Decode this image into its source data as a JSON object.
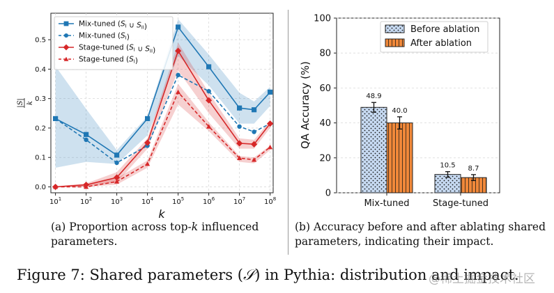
{
  "chart_data": [
    {
      "type": "line",
      "x_scale": "log",
      "x": [
        10,
        100,
        1000,
        10000,
        100000,
        1000000,
        10000000,
        30000000,
        100000000
      ],
      "xticks": [
        "10^1",
        "10^2",
        "10^3",
        "10^4",
        "10^5",
        "10^6",
        "10^7",
        "10^8"
      ],
      "xlabel": "k",
      "ylabel": "|S| / k",
      "ylim": [
        -0.02,
        0.59
      ],
      "yticks": [
        "0.0",
        "0.1",
        "0.2",
        "0.3",
        "0.4",
        "0.5"
      ],
      "grid": true,
      "legend_position": "top-left",
      "series": [
        {
          "name": "Mix-tuned (S_I ∪ S_II)",
          "color": "#1f77b4",
          "line": "solid",
          "marker": "square",
          "values": [
            0.232,
            0.178,
            0.108,
            0.232,
            0.543,
            0.408,
            0.268,
            0.262,
            0.322
          ],
          "band_low": [
            0.065,
            0.085,
            0.078,
            0.175,
            0.445,
            0.345,
            0.215,
            0.215,
            0.275
          ],
          "band_high": [
            0.41,
            0.265,
            0.125,
            0.24,
            0.57,
            0.45,
            0.32,
            0.29,
            0.34
          ]
        },
        {
          "name": "Mix-tuned (S_I)",
          "color": "#1f77b4",
          "line": "dashed",
          "marker": "circle",
          "values": [
            0.232,
            0.16,
            0.082,
            0.14,
            0.38,
            0.325,
            0.205,
            0.187,
            0.215
          ]
        },
        {
          "name": "Stage-tuned (S_I ∪ S_II)",
          "color": "#d62728",
          "line": "solid",
          "marker": "diamond",
          "values": [
            0.0,
            0.007,
            0.032,
            0.15,
            0.462,
            0.294,
            0.148,
            0.145,
            0.215
          ],
          "band_low": [
            0.0,
            0.002,
            0.015,
            0.13,
            0.395,
            0.25,
            0.13,
            0.13,
            0.2
          ],
          "band_high": [
            0.002,
            0.012,
            0.05,
            0.165,
            0.49,
            0.32,
            0.165,
            0.16,
            0.225
          ]
        },
        {
          "name": "Stage-tuned (S_I)",
          "color": "#d62728",
          "line": "dashed",
          "marker": "triangle",
          "values": [
            0.0,
            0.0,
            0.018,
            0.078,
            0.322,
            0.205,
            0.098,
            0.092,
            0.135
          ],
          "band_low": [
            0.0,
            0.0,
            0.008,
            0.065,
            0.28,
            0.19,
            0.085,
            0.08,
            0.125
          ],
          "band_high": [
            0.002,
            0.006,
            0.03,
            0.09,
            0.35,
            0.22,
            0.105,
            0.1,
            0.14
          ]
        }
      ]
    },
    {
      "type": "bar",
      "categories": [
        "Mix-tuned",
        "Stage-tuned"
      ],
      "ylabel": "QA Accuracy (%)",
      "ylim": [
        0,
        100
      ],
      "yticks": [
        "0",
        "20",
        "40",
        "60",
        "80",
        "100"
      ],
      "grid": true,
      "legend_position": "top-right",
      "series": [
        {
          "name": "Before ablation",
          "color": "#c6d9f1",
          "hatch": "dots",
          "values": [
            48.9,
            10.5
          ],
          "value_labels": [
            "48.9",
            "10.5"
          ],
          "errors": [
            2.8,
            1.6
          ]
        },
        {
          "name": "After ablation",
          "color": "#f0883a",
          "hatch": "vertical-lines",
          "values": [
            40.0,
            8.7
          ],
          "value_labels": [
            "40.0",
            "8.7"
          ],
          "errors": [
            3.5,
            1.7
          ]
        }
      ]
    }
  ],
  "captions": {
    "a_prefix": "(a) Proportion across top-",
    "a_k": "k",
    "a_suffix": " influenced parameters.",
    "b": "(b) Accuracy before and after ablating shared parameters, indicating their impact.",
    "figure_prefix": "Figure 7: Shared parameters (",
    "figure_symbol": "𝒮",
    "figure_suffix": ") in Pythia: distribution and impact."
  },
  "watermark": "@稀土掘金技术社区"
}
